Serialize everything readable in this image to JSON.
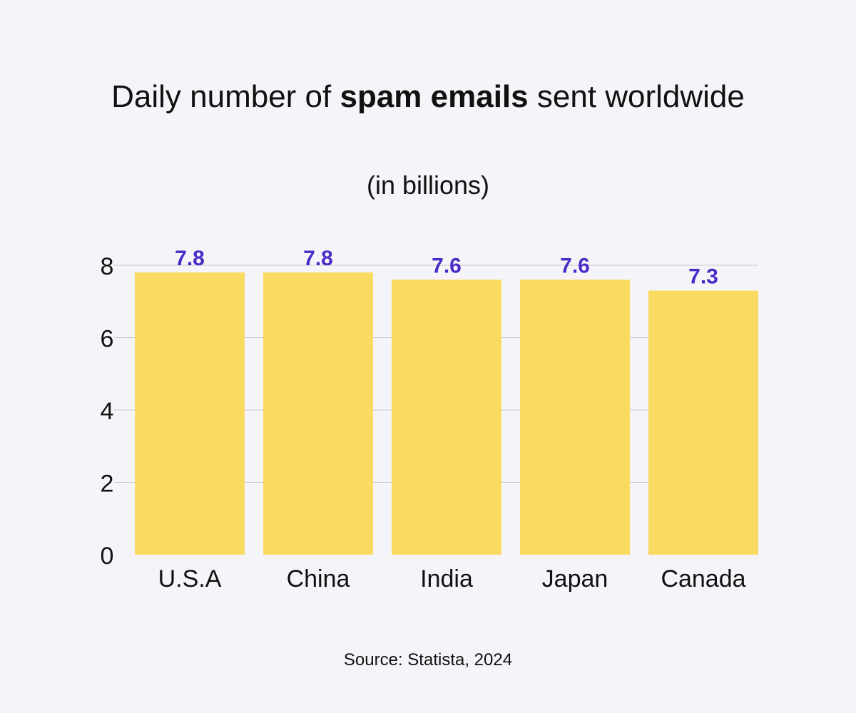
{
  "title": {
    "before": "Daily number of ",
    "bold": "spam emails",
    "after": " sent worldwide"
  },
  "subtitle": "(in billions)",
  "source": "Source: Statista, 2024",
  "colors": {
    "bar": "#fbda61",
    "label": "#4b2bc7",
    "grid": "#c9c8d0",
    "text": "#111111",
    "background": "#f5f4f9"
  },
  "chart_data": {
    "type": "bar",
    "categories": [
      "U.S.A",
      "China",
      "India",
      "Japan",
      "Canada"
    ],
    "values": [
      7.8,
      7.8,
      7.6,
      7.6,
      7.3
    ],
    "value_labels": [
      "7.8",
      "7.8",
      "7.6",
      "7.6",
      "7.3"
    ],
    "yticks": [
      0,
      2,
      4,
      6,
      8
    ],
    "ytick_labels": [
      "0",
      "2",
      "4",
      "6",
      "8"
    ],
    "ylim": [
      0,
      8
    ],
    "grid": true,
    "legend": "none"
  }
}
